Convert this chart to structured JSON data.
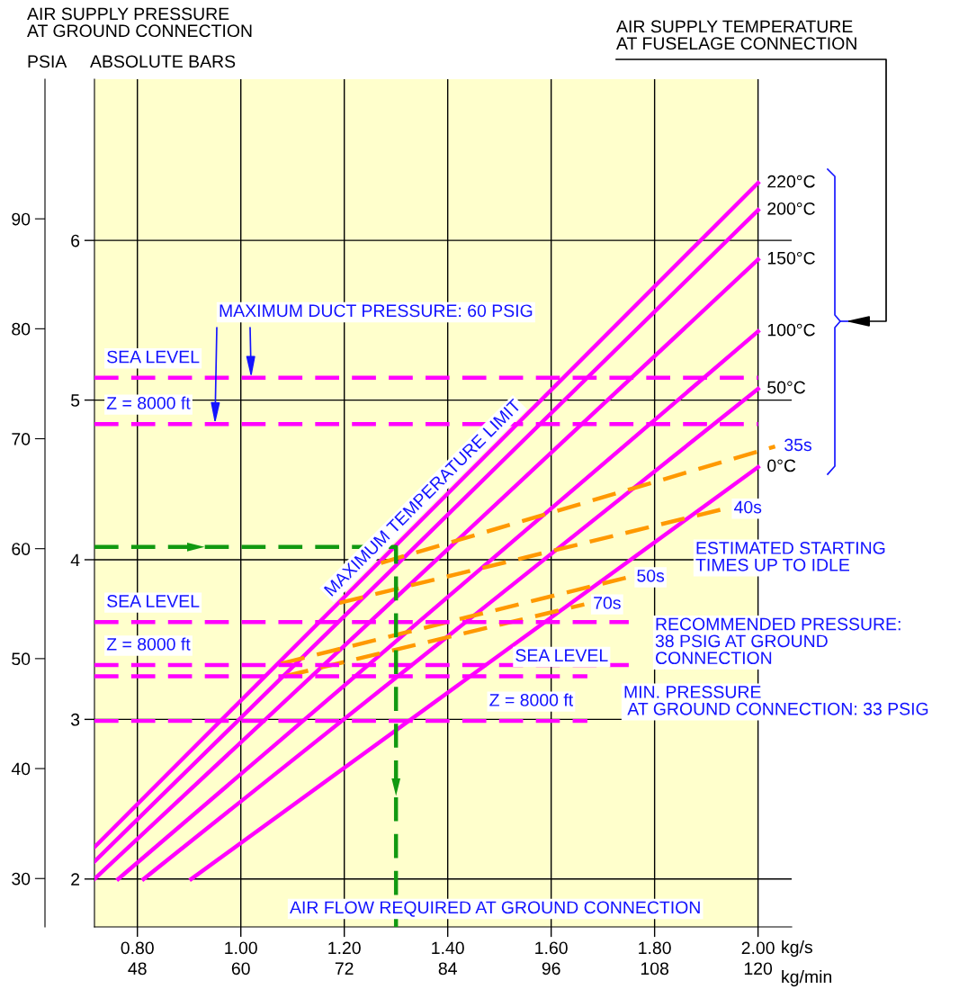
{
  "chart_data": {
    "type": "line",
    "title": "AIR SUPPLY PRESSURE\nAT GROUND CONNECTION",
    "xlabel": "kg/s",
    "x2label": "kg/min",
    "ylabel": "ABSOLUTE BARS",
    "y2label": "PSIA",
    "xlim": [
      0.717,
      2.065
    ],
    "xticks": [
      {
        "value": 0.8,
        "label": "0.80"
      },
      {
        "value": 1.0,
        "label": "1.00"
      },
      {
        "value": 1.2,
        "label": "1.20"
      },
      {
        "value": 1.4,
        "label": "1.40"
      },
      {
        "value": 1.6,
        "label": "1.60"
      },
      {
        "value": 1.8,
        "label": "1.80"
      },
      {
        "value": 2.0,
        "label": "2.00"
      }
    ],
    "x2lim": [
      43.02,
      123.9
    ],
    "x2ticks": [
      48,
      60,
      72,
      84,
      96,
      108,
      120
    ],
    "ylim": [
      1.7,
      7.01
    ],
    "yticks": [
      2,
      3,
      4,
      5,
      6
    ],
    "y2lim": [
      25.6,
      102.7
    ],
    "y2ticks": [
      30,
      40,
      50,
      60,
      70,
      80,
      90
    ],
    "grid": true,
    "bands": [
      {
        "axis": "x",
        "from": 0.717,
        "to": 2.0,
        "color": "#ffffcc"
      }
    ],
    "series": [
      {
        "name": "220°C",
        "color": "#ff00ff",
        "line_style": "solid",
        "x": [
          0.717,
          2.0
        ],
        "values": [
          2.2,
          6.36
        ]
      },
      {
        "name": "200°C",
        "color": "#ff00ff",
        "line_style": "solid",
        "x": [
          0.717,
          2.0
        ],
        "values": [
          2.11,
          6.19
        ]
      },
      {
        "name": "150°C",
        "color": "#ff00ff",
        "line_style": "solid",
        "x": [
          0.717,
          2.0
        ],
        "values": [
          2.0,
          5.88
        ]
      },
      {
        "name": "100°C",
        "color": "#ff00ff",
        "line_style": "solid",
        "x": [
          0.763,
          2.0
        ],
        "values": [
          2.0,
          5.43
        ]
      },
      {
        "name": "50°C",
        "color": "#ff00ff",
        "line_style": "solid",
        "x": [
          0.812,
          2.0
        ],
        "values": [
          2.0,
          5.07
        ]
      },
      {
        "name": "0°C",
        "color": "#ff00ff",
        "line_style": "solid",
        "x": [
          0.904,
          2.0
        ],
        "values": [
          2.0,
          4.58
        ]
      },
      {
        "name": "35s",
        "color": "#ff9900",
        "line_style": "dashed",
        "x": [
          1.271,
          2.033
        ],
        "values": [
          3.98,
          4.71
        ]
      },
      {
        "name": "40s",
        "color": "#ff9900",
        "line_style": "dashed",
        "x": [
          1.191,
          1.936
        ],
        "values": [
          3.73,
          4.32
        ]
      },
      {
        "name": "50s",
        "color": "#ff9900",
        "line_style": "dashed",
        "x": [
          1.078,
          1.748
        ],
        "values": [
          3.35,
          3.89
        ]
      },
      {
        "name": "70s",
        "color": "#ff9900",
        "line_style": "dashed",
        "x": [
          1.085,
          1.664
        ],
        "values": [
          3.27,
          3.72
        ]
      },
      {
        "color": "#ff00ff",
        "line_style": "dashed",
        "x": [
          0.717,
          2.0
        ],
        "values": [
          5.14,
          5.14
        ]
      },
      {
        "color": "#ff00ff",
        "line_style": "dashed",
        "x": [
          0.717,
          2.0
        ],
        "values": [
          4.85,
          4.85
        ]
      },
      {
        "color": "#ff00ff",
        "line_style": "dashed",
        "x": [
          0.717,
          1.75
        ],
        "values": [
          3.61,
          3.61
        ]
      },
      {
        "color": "#ff00ff",
        "line_style": "dashed",
        "x": [
          0.717,
          1.75
        ],
        "values": [
          3.34,
          3.34
        ]
      },
      {
        "color": "#ff00ff",
        "line_style": "dashed",
        "x": [
          0.717,
          1.67
        ],
        "values": [
          3.27,
          3.27
        ]
      },
      {
        "color": "#ff00ff",
        "line_style": "dashed",
        "x": [
          0.717,
          1.67
        ],
        "values": [
          2.99,
          2.99
        ]
      },
      {
        "color": "#119911",
        "line_style": "dashed",
        "x": [
          0.717,
          1.3,
          1.3
        ],
        "values": [
          4.08,
          4.08,
          1.7
        ]
      }
    ],
    "annotations": [
      {
        "text": "SEA LEVEL",
        "x": 0.74,
        "y": 5.14
      },
      {
        "text": "Z = 8000 ft",
        "x": 0.74,
        "y": 4.85
      },
      {
        "text": "SEA LEVEL",
        "x": 0.74,
        "y": 3.61
      },
      {
        "text": "Z = 8000 ft",
        "x": 0.74,
        "y": 3.34
      },
      {
        "text": "SEA LEVEL",
        "x": 1.53,
        "y": 3.27
      },
      {
        "text": "Z = 8000 ft",
        "x": 1.48,
        "y": 2.99
      },
      {
        "text": "MAXIMUM DUCT PRESSURE: 60 PSIG",
        "x": 1.02,
        "y": 5.14
      },
      "MAXIMUM TEMPERATURE LIMIT",
      "ESTIMATED STARTING\nTIMES UP TO IDLE",
      "RECOMMENDED PRESSURE:\n38 PSIG AT GROUND\nCONNECTION",
      "MIN. PRESSURE\n AT GROUND CONNECTION: 33 PSIG",
      "AIR FLOW REQUIRED AT GROUND CONNECTION",
      "AIR SUPPLY TEMPERATURE\nAT FUSELAGE CONNECTION"
    ]
  }
}
